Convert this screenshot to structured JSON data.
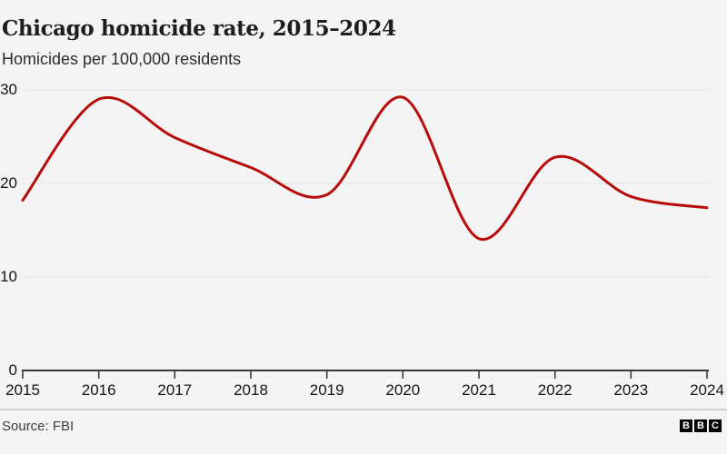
{
  "header": {
    "title": "Chicago homicide rate, 2015–2024",
    "subtitle": "Homicides per 100,000 residents"
  },
  "chart_data": {
    "type": "line",
    "title": "Chicago homicide rate, 2015–2024",
    "subtitle": "Homicides per 100,000 residents",
    "categories": [
      "2015",
      "2016",
      "2017",
      "2018",
      "2019",
      "2020",
      "2021",
      "2022",
      "2023",
      "2024"
    ],
    "series": [
      {
        "name": "Homicides per 100,000 residents",
        "values": [
          18.2,
          29.0,
          24.9,
          21.7,
          18.8,
          29.2,
          14.1,
          22.8,
          18.6,
          17.4
        ]
      }
    ],
    "xlabel": "",
    "ylabel": "Homicides per 100,000 residents",
    "ylim": [
      0,
      30
    ],
    "yticks": [
      0,
      10,
      20,
      30
    ],
    "grid": "horizontal",
    "legend": "none",
    "smoothing": "spline",
    "colors": {
      "line": "#b80c0c",
      "gridline": "#e3e3e3",
      "axis": "#3a3a3a",
      "background": "#f4f4f4"
    }
  },
  "footer": {
    "source": "Source: FBI",
    "logo": {
      "name": "BBC",
      "letters": [
        "B",
        "B",
        "C"
      ]
    }
  }
}
